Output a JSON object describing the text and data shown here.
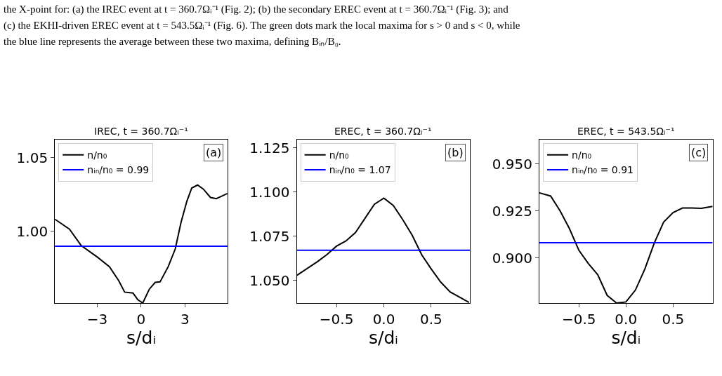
{
  "chart_data": [
    {
      "type": "line",
      "title": "IREC, t = 360.7Ωᵢ⁻¹",
      "xlabel": "s/dᵢ",
      "legend": "top left",
      "annotations": [
        "the X-point for: (a) the IREC event at t = 360.7Ωᵢ⁻¹ (Fig. 2); (b) the secondary EREC event at t = 360.7Ωᵢ⁻¹ (Fig. 3); and",
        "(c) the EKHI-driven EREC event at t = 543.5Ωᵢ⁻¹ (Fig. 6). The green dots mark the local maxima for s > 0 and s < 0, while",
        "the blue line represents the average between these two maxima, defining Bᵢₙ/B₀.",
        "(a)"
      ],
      "xlim": [
        -5.9,
        5.9
      ],
      "xticks": [
        {
          "value": -3,
          "label": "−3"
        },
        {
          "value": 0,
          "label": "0"
        },
        {
          "value": 3,
          "label": "3"
        }
      ],
      "ylim": [
        0.9516,
        1.0622
      ],
      "yticks": [
        {
          "value": 1.0,
          "label": "1.00"
        },
        {
          "value": 1.05,
          "label": "1.05"
        }
      ],
      "series": [
        {
          "name": "n/n₀",
          "color": "#000000",
          "x": [
            -5.9,
            -4.9,
            -4.1,
            -2.97,
            -2.17,
            -1.53,
            -1.13,
            -0.56,
            -0.24,
            0.11,
            0.56,
            0.96,
            1.29,
            1.85,
            2.33,
            2.73,
            3.13,
            3.46,
            3.86,
            4.26,
            4.74,
            5.14,
            5.9
          ],
          "values": [
            1.0083,
            1.0016,
            0.9905,
            0.9825,
            0.9762,
            0.9667,
            0.959,
            0.9584,
            0.954,
            0.9516,
            0.961,
            0.9656,
            0.9659,
            0.9762,
            0.9881,
            1.0063,
            1.0206,
            1.0294,
            1.0314,
            1.0286,
            1.023,
            1.0222,
            1.0257
          ]
        }
      ],
      "ref_lines": [
        {
          "axis": "y",
          "value": 0.99,
          "label": "nᵢₙ/n₀ = 0.99",
          "color": "#0000ff"
        }
      ]
    },
    {
      "type": "line",
      "title": "EREC, t = 360.7Ωᵢ⁻¹",
      "xlabel": "s/dᵢ",
      "legend": "top left",
      "annotations": [
        "(b)"
      ],
      "xlim": [
        -0.92,
        0.91
      ],
      "xticks": [
        {
          "value": -0.5,
          "label": "−0.5"
        },
        {
          "value": 0.0,
          "label": "0.0"
        },
        {
          "value": 0.5,
          "label": "0.5"
        }
      ],
      "ylim": [
        1.0371,
        1.1297
      ],
      "yticks": [
        {
          "value": 1.05,
          "label": "1.050"
        },
        {
          "value": 1.075,
          "label": "1.075"
        },
        {
          "value": 1.1,
          "label": "1.100"
        },
        {
          "value": 1.125,
          "label": "1.125"
        }
      ],
      "series": [
        {
          "name": "n/n₀",
          "color": "#000000",
          "x": [
            -0.92,
            -0.8,
            -0.7,
            -0.6,
            -0.5,
            -0.4,
            -0.3,
            -0.2,
            -0.1,
            0.0,
            0.1,
            0.2,
            0.3,
            0.4,
            0.5,
            0.6,
            0.7,
            0.8,
            0.9
          ],
          "values": [
            1.0527,
            1.057,
            1.0606,
            1.0646,
            1.0693,
            1.0723,
            1.077,
            1.085,
            1.093,
            1.0965,
            1.0923,
            1.0843,
            1.0754,
            1.0644,
            1.0564,
            1.049,
            1.0434,
            1.0404,
            1.0375
          ]
        }
      ],
      "ref_lines": [
        {
          "axis": "y",
          "value": 1.067,
          "label": "nᵢₙ/n₀ = 1.07",
          "color": "#0000ff"
        }
      ]
    },
    {
      "type": "line",
      "title": "EREC, t = 543.5Ωᵢ⁻¹",
      "xlabel": "s/dᵢ",
      "legend": "top left",
      "annotations": [
        "(c)"
      ],
      "xlim": [
        -0.92,
        0.92
      ],
      "xticks": [
        {
          "value": -0.5,
          "label": "−0.5"
        },
        {
          "value": 0.0,
          "label": "0.0"
        },
        {
          "value": 0.5,
          "label": "0.5"
        }
      ],
      "ylim": [
        0.8759,
        0.963
      ],
      "yticks": [
        {
          "value": 0.9,
          "label": "0.900"
        },
        {
          "value": 0.925,
          "label": "0.925"
        },
        {
          "value": 0.95,
          "label": "0.950"
        }
      ],
      "series": [
        {
          "name": "n/n₀",
          "color": "#000000",
          "x": [
            -0.92,
            -0.8,
            -0.7,
            -0.6,
            -0.5,
            -0.4,
            -0.3,
            -0.2,
            -0.1,
            0.0,
            0.1,
            0.2,
            0.3,
            0.4,
            0.5,
            0.6,
            0.7,
            0.8,
            0.92
          ],
          "values": [
            0.9346,
            0.9329,
            0.925,
            0.9155,
            0.904,
            0.897,
            0.891,
            0.88,
            0.8759,
            0.8765,
            0.8828,
            0.894,
            0.9078,
            0.919,
            0.9241,
            0.9265,
            0.9265,
            0.9263,
            0.9274
          ]
        }
      ],
      "ref_lines": [
        {
          "axis": "y",
          "value": 0.908,
          "label": "nᵢₙ/n₀ = 0.91",
          "color": "#0000ff"
        }
      ]
    }
  ]
}
